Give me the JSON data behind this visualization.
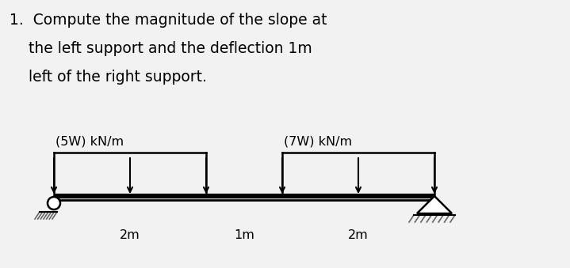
{
  "title_line1": "1.  Compute the magnitude of the slope at",
  "title_line2": "    the left support and the deflection 1m",
  "title_line3": "    left of the right support.",
  "load_left_label": "(5W) kN/m",
  "load_right_label": "(7W) kN/m",
  "dim_labels": [
    "2m",
    "1m",
    "2m"
  ],
  "background_color": "#f2f2f2",
  "beam_color": "#000000",
  "text_color": "#000000",
  "hatch_color": "#666666",
  "title_fontsize": 13.5,
  "diagram_fontsize": 11.5
}
